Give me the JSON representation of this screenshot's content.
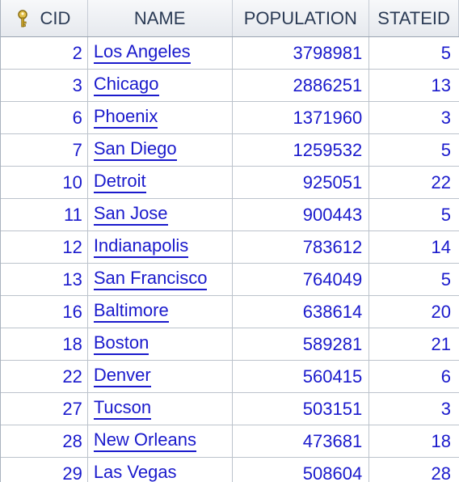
{
  "table": {
    "columns": {
      "cid": "CID",
      "name": "NAME",
      "population": "POPULATION",
      "stateid": "STATEID"
    },
    "rows": [
      {
        "cid": "2",
        "name": "Los Angeles",
        "population": "3798981",
        "stateid": "5"
      },
      {
        "cid": "3",
        "name": "Chicago",
        "population": "2886251",
        "stateid": "13"
      },
      {
        "cid": "6",
        "name": "Phoenix",
        "population": "1371960",
        "stateid": "3"
      },
      {
        "cid": "7",
        "name": "San Diego",
        "population": "1259532",
        "stateid": "5"
      },
      {
        "cid": "10",
        "name": "Detroit",
        "population": "925051",
        "stateid": "22"
      },
      {
        "cid": "11",
        "name": "San Jose",
        "population": "900443",
        "stateid": "5"
      },
      {
        "cid": "12",
        "name": "Indianapolis",
        "population": "783612",
        "stateid": "14"
      },
      {
        "cid": "13",
        "name": "San Francisco",
        "population": "764049",
        "stateid": "5"
      },
      {
        "cid": "16",
        "name": "Baltimore",
        "population": "638614",
        "stateid": "20"
      },
      {
        "cid": "18",
        "name": "Boston",
        "population": "589281",
        "stateid": "21"
      },
      {
        "cid": "22",
        "name": "Denver",
        "population": "560415",
        "stateid": "6"
      },
      {
        "cid": "27",
        "name": "Tucson",
        "population": "503151",
        "stateid": "3"
      },
      {
        "cid": "28",
        "name": "New Orleans",
        "population": "473681",
        "stateid": "18"
      },
      {
        "cid": "29",
        "name": "Las Vegas",
        "population": "508604",
        "stateid": "28"
      }
    ]
  },
  "icons": {
    "primary_key": "key-icon"
  },
  "colors": {
    "cell_text": "#1a1acc",
    "header_text": "#2b3b55",
    "grid_line": "#bcc3cc",
    "key_icon": "#c9a227"
  }
}
